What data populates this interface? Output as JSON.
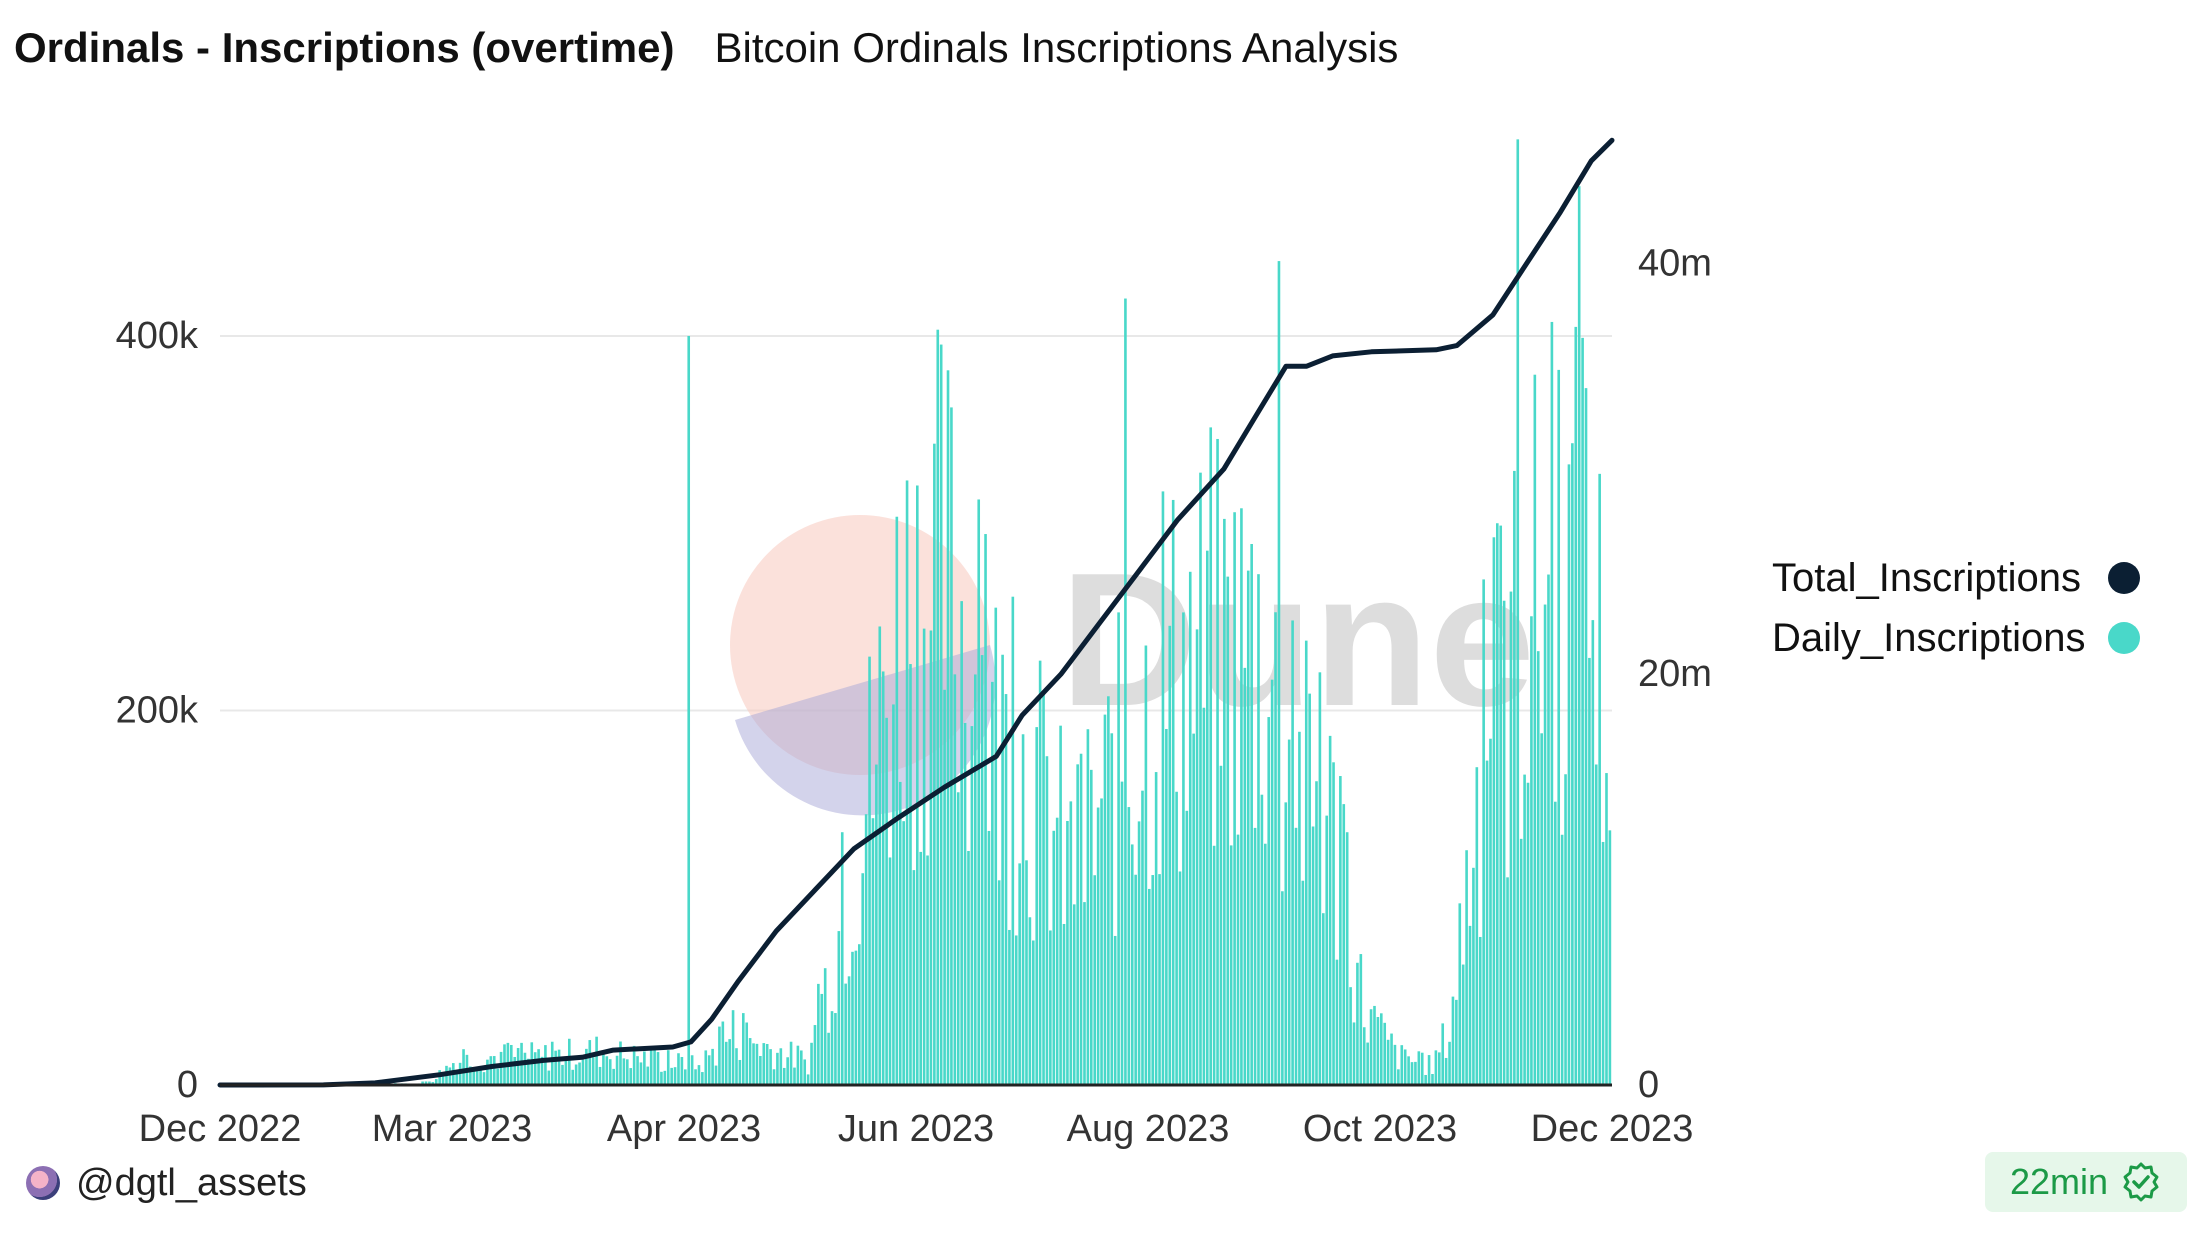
{
  "header": {
    "title": "Ordinals - Inscriptions (overtime)",
    "subtitle": "Bitcoin Ordinals Inscriptions Analysis"
  },
  "footer": {
    "username": "@dgtl_assets",
    "refresh_label": "22min"
  },
  "legend": {
    "items": [
      {
        "label": "Total_Inscriptions",
        "color": "#0b1f33"
      },
      {
        "label": "Daily_Inscriptions",
        "color": "#49d8c9"
      }
    ]
  },
  "watermark": {
    "text": "Dune"
  },
  "colors": {
    "bar": "#49d8c9",
    "line": "#0b1f33",
    "grid": "#e8e8e8",
    "axis": "#222222",
    "tick_text": "#333333",
    "verified": "#1c9a47"
  },
  "chart_data": {
    "type": "bar+line",
    "x_tick_labels": [
      "Dec 2022",
      "Mar 2023",
      "Apr 2023",
      "Jun 2023",
      "Aug 2023",
      "Oct 2023",
      "Dec 2023"
    ],
    "y_left": {
      "ticks": [
        0,
        200000,
        400000
      ],
      "tick_labels": [
        "0",
        "200k",
        "400k"
      ],
      "range": [
        0,
        510000
      ]
    },
    "y_right": {
      "ticks": [
        0,
        20000000,
        40000000
      ],
      "tick_labels": [
        "0",
        "20m",
        "40m"
      ],
      "range": [
        0,
        46500000
      ]
    },
    "series": [
      {
        "name": "Daily_Inscriptions",
        "kind": "bar",
        "axis": "left",
        "days_from_start": 360,
        "profile": [
          [
            0,
            0
          ],
          [
            40,
            500
          ],
          [
            58,
            800
          ],
          [
            62,
            3000
          ],
          [
            68,
            12000
          ],
          [
            80,
            15000
          ],
          [
            95,
            15000
          ],
          [
            110,
            18000
          ],
          [
            125,
            14000
          ],
          [
            140,
            10000
          ],
          [
            150,
            28000
          ],
          [
            160,
            20000
          ],
          [
            172,
            12000
          ],
          [
            178,
            60000
          ],
          [
            182,
            90000
          ],
          [
            190,
            160000
          ],
          [
            200,
            250000
          ],
          [
            212,
            270000
          ],
          [
            225,
            190000
          ],
          [
            238,
            160000
          ],
          [
            250,
            110000
          ],
          [
            262,
            160000
          ],
          [
            275,
            210000
          ],
          [
            290,
            230000
          ],
          [
            305,
            230000
          ],
          [
            312,
            170000
          ],
          [
            325,
            140000
          ],
          [
            335,
            40000
          ],
          [
            345,
            15000
          ],
          [
            355,
            10000
          ],
          [
            360,
            30000
          ],
          [
            370,
            180000
          ],
          [
            380,
            230000
          ],
          [
            392,
            280000
          ],
          [
            402,
            260000
          ],
          [
            408,
            170000
          ]
        ],
        "highlights": [
          {
            "label": "Apr 2023 peak",
            "value": 400000
          },
          {
            "label": "Aug 2023 peak",
            "value": 420000
          },
          {
            "label": "Sep 2023 peak",
            "value": 440000
          },
          {
            "label": "Nov 2023 peak",
            "value": 505000
          },
          {
            "label": "Dec 2023 peak",
            "value": 480000
          }
        ]
      },
      {
        "name": "Total_Inscriptions",
        "kind": "line",
        "axis": "right",
        "points": [
          [
            0,
            0
          ],
          [
            40,
            5000
          ],
          [
            60,
            100000
          ],
          [
            85,
            500000
          ],
          [
            105,
            900000
          ],
          [
            125,
            1200000
          ],
          [
            140,
            1350000
          ],
          [
            152,
            1700000
          ],
          [
            175,
            1850000
          ],
          [
            182,
            2100000
          ],
          [
            190,
            3200000
          ],
          [
            200,
            5000000
          ],
          [
            215,
            7500000
          ],
          [
            230,
            9500000
          ],
          [
            245,
            11500000
          ],
          [
            262,
            13000000
          ],
          [
            280,
            14500000
          ],
          [
            300,
            16000000
          ],
          [
            310,
            18000000
          ],
          [
            325,
            20000000
          ],
          [
            340,
            22500000
          ],
          [
            355,
            25000000
          ],
          [
            370,
            27500000
          ],
          [
            388,
            30000000
          ],
          [
            400,
            32500000
          ],
          [
            412,
            35000000
          ],
          [
            420,
            35000000
          ],
          [
            430,
            35500000
          ],
          [
            445,
            35700000
          ],
          [
            470,
            35800000
          ],
          [
            478,
            36000000
          ],
          [
            492,
            37500000
          ],
          [
            505,
            40000000
          ],
          [
            518,
            42500000
          ],
          [
            530,
            45000000
          ],
          [
            538,
            46000000
          ]
        ]
      }
    ]
  }
}
